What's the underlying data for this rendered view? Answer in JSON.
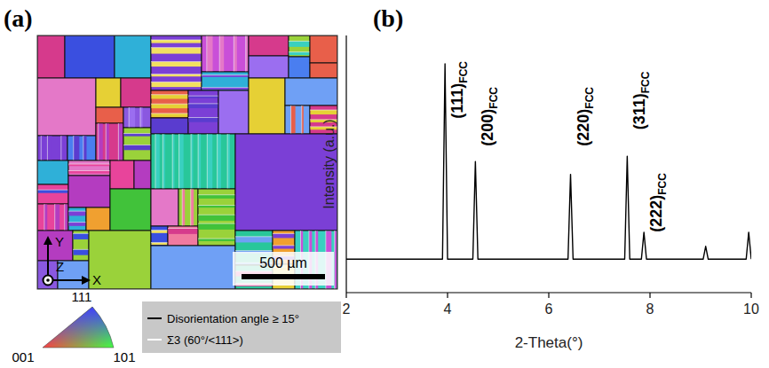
{
  "panels": {
    "a": {
      "letter": "(a)",
      "axes": [
        "Y",
        "Z",
        "X"
      ],
      "scale_bar": "500 µm",
      "ipf_corners": [
        "111",
        "001",
        "101"
      ],
      "boundary_legend": [
        "Disorientation angle ≥ 15°",
        "Σ3 (60°/<111>)"
      ]
    },
    "b": {
      "letter": "(b)"
    }
  },
  "chart_data": {
    "type": "line",
    "x_label": "2-Theta(°)",
    "y_label": "Intensity (a.u.)",
    "x": [
      2,
      3.9,
      3.95,
      4.0,
      4.5,
      4.55,
      4.6,
      6.38,
      6.43,
      6.48,
      7.5,
      7.55,
      7.6,
      7.83,
      7.88,
      7.93,
      9.05,
      9.1,
      9.15,
      9.9,
      9.95,
      10
    ],
    "values": [
      13,
      13,
      89,
      13,
      13,
      51,
      13,
      13,
      46,
      13,
      13,
      53,
      13,
      13,
      23.5,
      13,
      13,
      18,
      13,
      13,
      23.5,
      13
    ],
    "color": "#000000",
    "xlim": [
      2,
      10
    ],
    "xticks": [
      2,
      4,
      6,
      8,
      10
    ],
    "ylim": [
      0,
      100
    ],
    "tick_labels": "x",
    "grid": false,
    "annotations": [
      {
        "label": "(111)",
        "subscript": "FCC",
        "x": 3.95,
        "y": 90
      },
      {
        "label": "(200)",
        "subscript": "FCC",
        "x": 4.55,
        "y": 80
      },
      {
        "label": "(220)",
        "subscript": "FCC",
        "x": 6.43,
        "y": 80
      },
      {
        "label": "(311)",
        "subscript": "FCC",
        "x": 7.55,
        "y": 86
      },
      {
        "label": "(222)",
        "subscript": "FCC",
        "x": 7.88,
        "y": 46.5
      }
    ]
  }
}
